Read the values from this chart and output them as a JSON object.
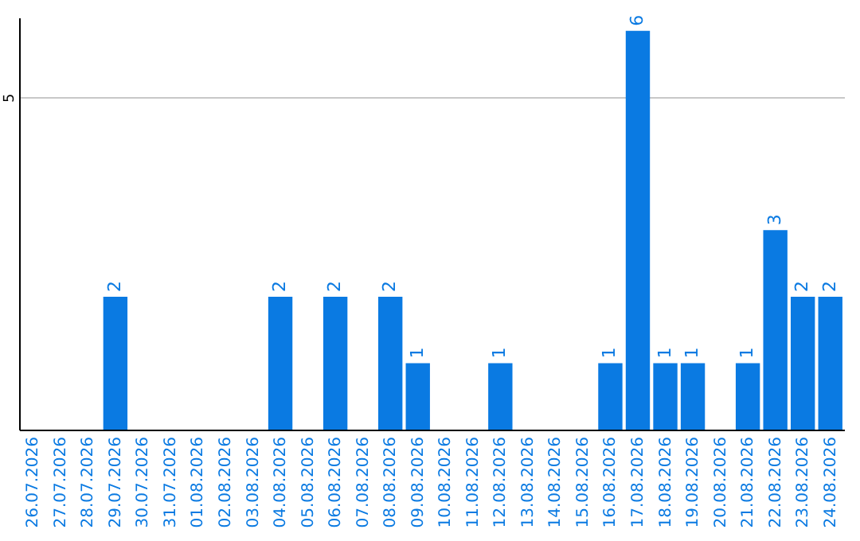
{
  "chart_data": {
    "type": "bar",
    "categories": [
      "26.07.2026",
      "27.07.2026",
      "28.07.2026",
      "29.07.2026",
      "30.07.2026",
      "31.07.2026",
      "01.08.2026",
      "02.08.2026",
      "03.08.2026",
      "04.08.2026",
      "05.08.2026",
      "06.08.2026",
      "07.08.2026",
      "08.08.2026",
      "09.08.2026",
      "10.08.2026",
      "11.08.2026",
      "12.08.2026",
      "13.08.2026",
      "14.08.2026",
      "15.08.2026",
      "16.08.2026",
      "17.08.2026",
      "18.08.2026",
      "19.08.2026",
      "20.08.2026",
      "21.08.2026",
      "22.08.2026",
      "23.08.2026",
      "24.08.2026"
    ],
    "values": [
      0,
      0,
      0,
      2,
      0,
      0,
      0,
      0,
      0,
      2,
      0,
      2,
      0,
      2,
      1,
      0,
      0,
      1,
      0,
      0,
      0,
      1,
      6,
      1,
      1,
      0,
      1,
      3,
      2,
      2
    ],
    "value_labels": [
      null,
      null,
      null,
      "2",
      null,
      null,
      null,
      null,
      null,
      "2",
      null,
      "2",
      null,
      "2",
      "1",
      null,
      null,
      "1",
      null,
      null,
      null,
      "1",
      "6",
      "1",
      "1",
      null,
      "1",
      "3",
      "2",
      "2"
    ],
    "color": "#0a7ae2",
    "ylim": [
      0,
      6.2
    ],
    "yticks": [
      5
    ],
    "grid": "y"
  }
}
